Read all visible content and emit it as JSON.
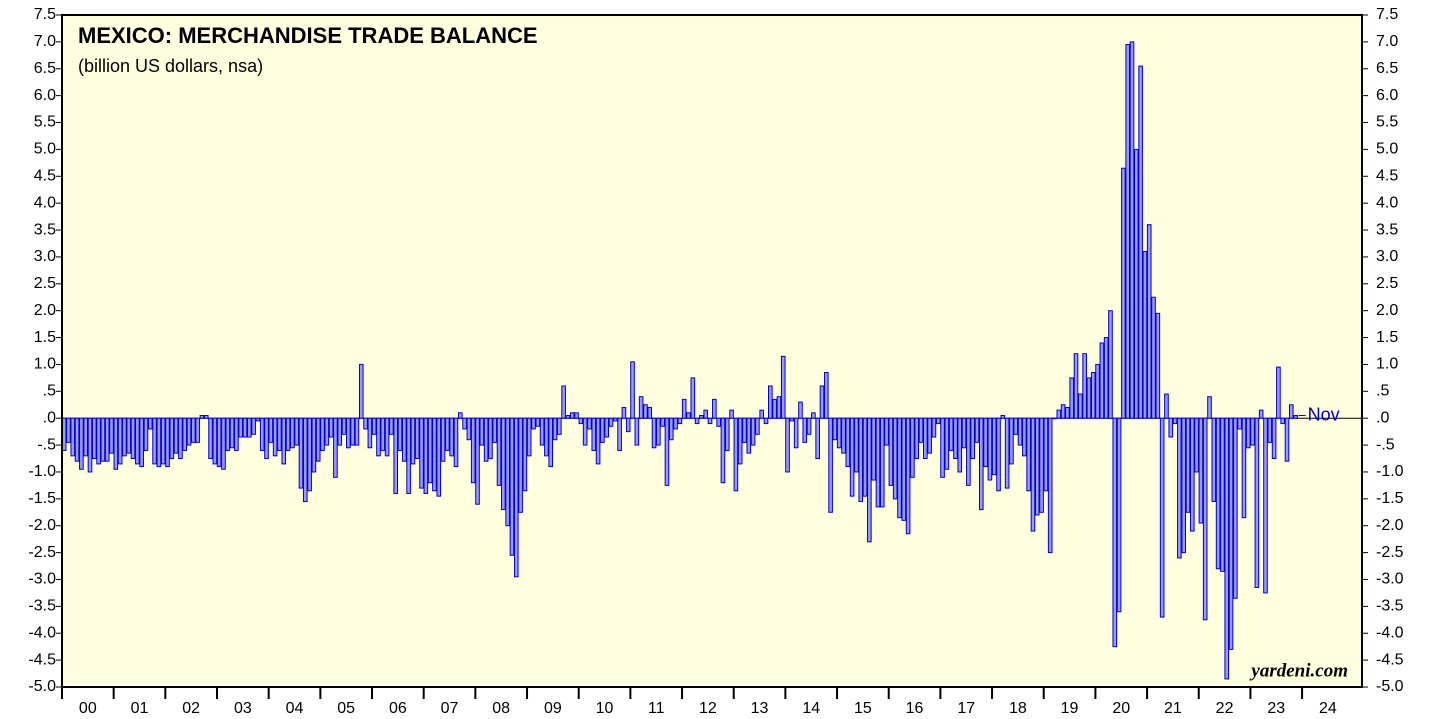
{
  "chart_data": {
    "type": "bar",
    "title": "MEXICO: MERCHANDISE TRADE BALANCE",
    "subtitle": "(billion US dollars, nsa)",
    "annotation": "Nov",
    "source": "yardeni.com",
    "color": "#9a9aff",
    "edge_color": "#0000cc",
    "x_labels": [
      "00",
      "01",
      "02",
      "03",
      "04",
      "05",
      "06",
      "07",
      "08",
      "09",
      "10",
      "11",
      "12",
      "13",
      "14",
      "15",
      "16",
      "17",
      "18",
      "19",
      "20",
      "21",
      "22",
      "23",
      "24"
    ],
    "ylim": [
      -5,
      7.5
    ],
    "yticks": [
      {
        "value": -5,
        "label": "-5.0"
      },
      -4.5,
      {
        "value": -4,
        "label": "-4.0"
      },
      -3.5,
      {
        "value": -3,
        "label": "-3.0"
      },
      -2.5,
      {
        "value": -2,
        "label": "-2.0"
      },
      -1.5,
      {
        "value": -1,
        "label": "-1.0"
      },
      {
        "value": -0.5,
        "label": "-.5"
      },
      {
        "value": 0,
        "label": ".0"
      },
      {
        "value": 0.5,
        "label": ".5"
      },
      {
        "value": 1,
        "label": "1.0"
      },
      1.5,
      {
        "value": 2,
        "label": "2.0"
      },
      2.5,
      {
        "value": 3,
        "label": "3.0"
      },
      3.5,
      {
        "value": 4,
        "label": "4.0"
      },
      4.5,
      {
        "value": 5,
        "label": "5.0"
      },
      5.5,
      {
        "value": 6,
        "label": "6.0"
      },
      6.5,
      {
        "value": 7,
        "label": "7.0"
      },
      7.5
    ],
    "values": [
      -0.6,
      -0.45,
      -0.7,
      -0.8,
      -0.95,
      -0.7,
      -1.0,
      -0.75,
      -0.85,
      -0.8,
      -0.8,
      -0.65,
      -0.95,
      -0.85,
      -0.7,
      -0.65,
      -0.75,
      -0.85,
      -0.9,
      -0.6,
      -0.2,
      -0.85,
      -0.9,
      -0.85,
      -0.9,
      -0.75,
      -0.65,
      -0.75,
      -0.6,
      -0.5,
      -0.45,
      -0.45,
      0.05,
      0.05,
      -0.75,
      -0.85,
      -0.9,
      -0.95,
      -0.6,
      -0.55,
      -0.6,
      -0.35,
      -0.35,
      -0.35,
      -0.3,
      -0.05,
      -0.6,
      -0.75,
      -0.45,
      -0.7,
      -0.6,
      -0.85,
      -0.6,
      -0.55,
      -0.5,
      -1.3,
      -1.55,
      -1.35,
      -1.0,
      -0.8,
      -0.6,
      -0.5,
      -0.35,
      -1.1,
      -0.5,
      -0.3,
      -0.55,
      -0.5,
      -0.5,
      1.0,
      -0.2,
      -0.55,
      -0.3,
      -0.7,
      -0.6,
      -0.7,
      -0.3,
      -1.4,
      -0.6,
      -0.8,
      -1.4,
      -0.85,
      -0.75,
      -1.3,
      -1.4,
      -1.2,
      -1.35,
      -1.45,
      -0.8,
      -0.6,
      -0.7,
      -0.9,
      0.1,
      -0.2,
      -0.4,
      -1.2,
      -1.6,
      -0.5,
      -0.8,
      -0.75,
      -0.45,
      -1.25,
      -1.7,
      -2.0,
      -2.55,
      -2.95,
      -1.75,
      -1.35,
      -0.7,
      -0.2,
      -0.15,
      -0.5,
      -0.7,
      -0.9,
      -0.4,
      -0.3,
      0.6,
      0.05,
      0.1,
      0.1,
      -0.1,
      -0.5,
      -0.2,
      -0.6,
      -0.85,
      -0.45,
      -0.35,
      -0.15,
      -0.05,
      -0.6,
      0.2,
      -0.25,
      1.05,
      -0.5,
      0.4,
      0.25,
      0.2,
      -0.55,
      -0.5,
      -0.15,
      -1.25,
      -0.4,
      -0.2,
      -0.1,
      0.35,
      0.1,
      0.75,
      -0.1,
      0.05,
      0.15,
      -0.1,
      0.35,
      -0.15,
      -1.2,
      -0.6,
      0.15,
      -1.35,
      -0.85,
      -0.45,
      -0.65,
      -0.5,
      -0.3,
      0.15,
      -0.1,
      0.6,
      0.35,
      0.4,
      1.15,
      -1.0,
      -0.05,
      -0.55,
      0.3,
      -0.45,
      -0.3,
      0.1,
      -0.75,
      0.6,
      0.85,
      -1.75,
      -0.4,
      -0.55,
      -0.65,
      -0.9,
      -1.45,
      -1.0,
      -1.55,
      -1.45,
      -2.3,
      -1.15,
      -1.65,
      -1.65,
      -0.5,
      -1.25,
      -1.5,
      -1.85,
      -1.9,
      -2.15,
      -1.1,
      -0.75,
      -0.45,
      -0.75,
      -0.65,
      -0.35,
      -0.1,
      -1.1,
      -0.95,
      -0.6,
      -0.75,
      -1.0,
      -0.55,
      -1.25,
      -0.75,
      -0.45,
      -1.7,
      -0.9,
      -1.15,
      -1.05,
      -1.35,
      0.05,
      -1.3,
      -0.85,
      -0.3,
      -0.5,
      -0.7,
      -1.35,
      -2.1,
      -1.8,
      -1.75,
      -1.35,
      -2.5,
      0.0,
      0.15,
      0.25,
      0.2,
      0.75,
      1.2,
      0.45,
      1.2,
      0.75,
      0.85,
      1.0,
      1.4,
      1.5,
      2.0,
      -4.25,
      -3.6,
      4.65,
      6.95,
      7.0,
      5.0,
      6.55,
      3.1,
      3.6,
      2.25,
      1.95,
      -3.7,
      0.45,
      -0.35,
      -0.1,
      -2.6,
      -2.5,
      -1.75,
      -2.1,
      -1.0,
      -1.95,
      -3.75,
      0.4,
      -1.55,
      -2.8,
      -2.85,
      -4.85,
      -4.3,
      -3.35,
      -0.2,
      -1.85,
      -0.55,
      -0.5,
      -3.15,
      0.15,
      -3.25,
      -0.45,
      -0.75,
      0.95,
      -0.1,
      -0.8,
      0.25,
      0.05
    ]
  }
}
